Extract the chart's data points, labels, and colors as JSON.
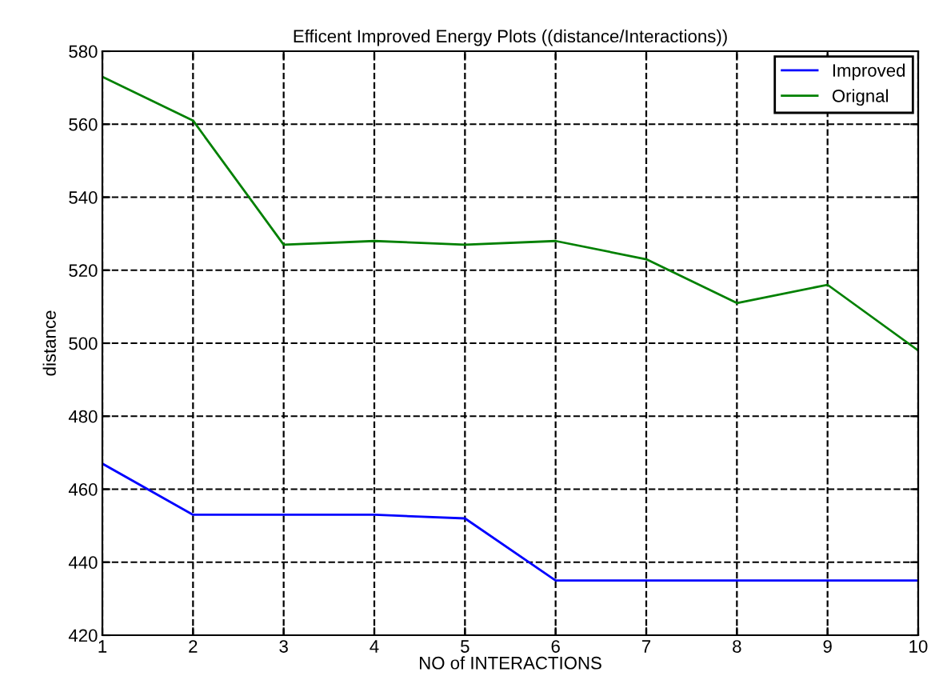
{
  "chart_data": {
    "type": "line",
    "title": "Efficent Improved Energy Plots ((distance/Interactions))",
    "xlabel": "NO of INTERACTIONS",
    "ylabel": "distance",
    "x": [
      1,
      2,
      3,
      4,
      5,
      6,
      7,
      8,
      9,
      10
    ],
    "series": [
      {
        "name": "Improved",
        "color": "#0000ff",
        "values": [
          467,
          453,
          453,
          453,
          452,
          435,
          435,
          435,
          435,
          435
        ]
      },
      {
        "name": "Orignal",
        "color": "#008000",
        "values": [
          573,
          561,
          527,
          528,
          527,
          528,
          523,
          511,
          516,
          498
        ]
      }
    ],
    "xlim": [
      1,
      10
    ],
    "xticks": [
      1,
      2,
      3,
      4,
      5,
      6,
      7,
      8,
      9,
      10
    ],
    "ylim": [
      420,
      580
    ],
    "yticks": [
      420,
      440,
      460,
      480,
      500,
      520,
      540,
      560,
      580
    ],
    "grid": true,
    "legend": "top right",
    "line_style": "solid"
  }
}
